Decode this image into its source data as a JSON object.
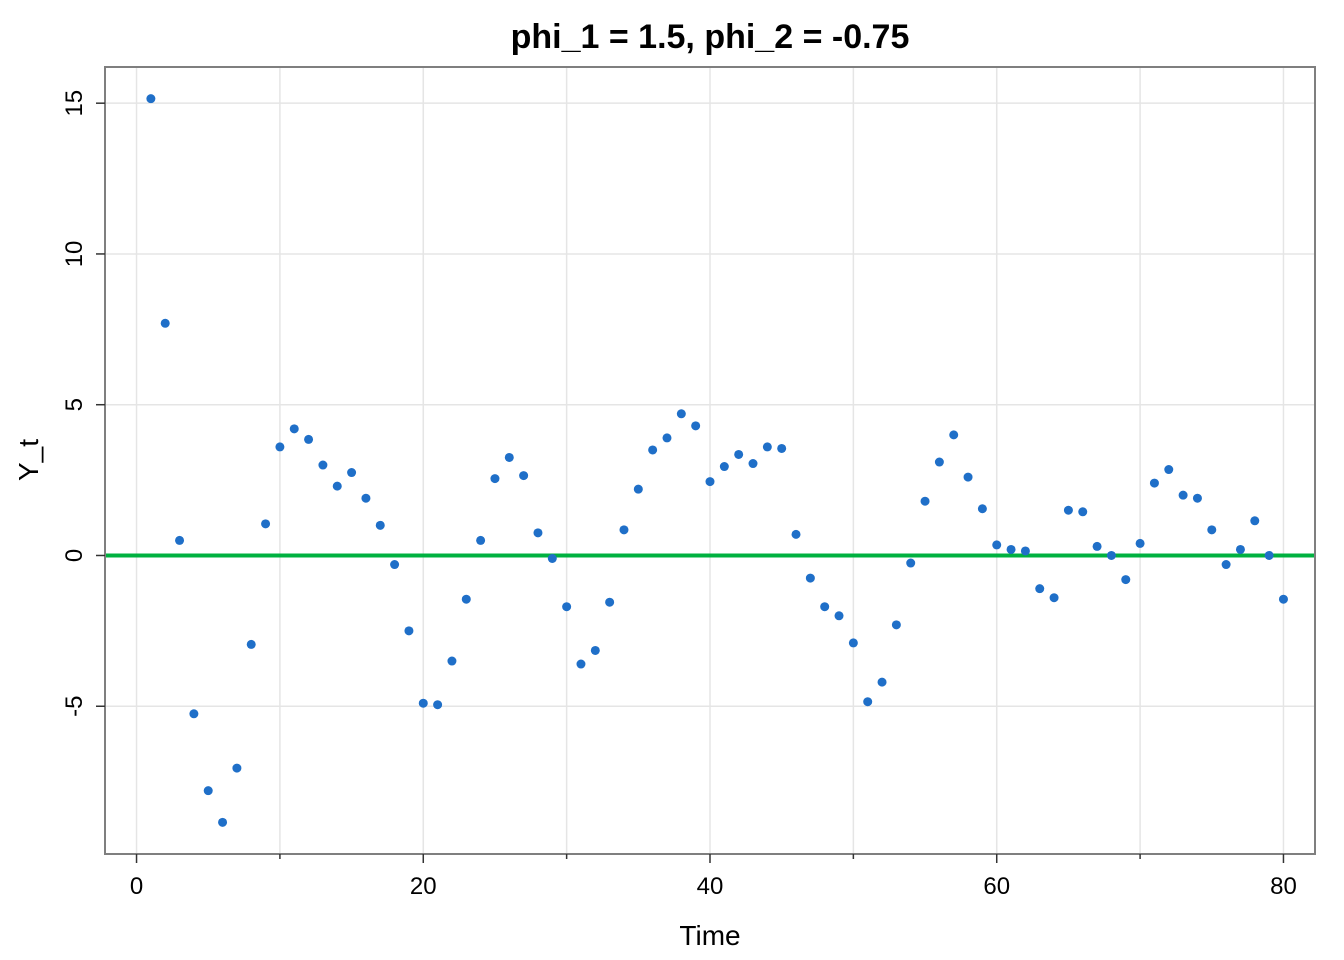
{
  "chart_data": {
    "type": "scatter",
    "title": "phi_1 = 1.5, phi_2 = -0.75",
    "xlabel": "Time",
    "ylabel": "Y_t",
    "xlim": [
      -2.2,
      82.2
    ],
    "ylim": [
      -9.9,
      16.2
    ],
    "x_ticks": [
      0,
      20,
      40,
      60,
      80
    ],
    "x_minor_ticks": [
      10,
      30,
      50,
      70
    ],
    "y_ticks": [
      -5,
      0,
      5,
      10,
      15
    ],
    "grid": true,
    "reference_line": {
      "y": 0,
      "color": "#00b140"
    },
    "point_color": "#1f6fc8",
    "series": [
      {
        "x": [
          1,
          2,
          3,
          4,
          5,
          6,
          7,
          8,
          9,
          10,
          11,
          12,
          13,
          14,
          15,
          16,
          17,
          18,
          19,
          20,
          21,
          22,
          23,
          24,
          25,
          26,
          27,
          28,
          29,
          30,
          31,
          32,
          33,
          34,
          35,
          36,
          37,
          38,
          39,
          40,
          41,
          42,
          43,
          44,
          45,
          46,
          47,
          48,
          49,
          50,
          51,
          52,
          53,
          54,
          55,
          56,
          57,
          58,
          59,
          60,
          61,
          62,
          63,
          64,
          65,
          66,
          67,
          68,
          69,
          70,
          71,
          72,
          73,
          74,
          75,
          76,
          77,
          78,
          79,
          80
        ],
        "y": [
          15.15,
          7.7,
          0.5,
          -5.25,
          -7.8,
          -8.85,
          -7.05,
          -2.95,
          1.05,
          3.6,
          4.2,
          3.85,
          3.0,
          2.3,
          2.75,
          1.9,
          1.0,
          -0.3,
          -2.5,
          -4.9,
          -4.95,
          -3.5,
          -1.45,
          0.5,
          2.55,
          3.25,
          2.65,
          0.75,
          -0.1,
          -1.7,
          -3.6,
          -3.15,
          -1.55,
          0.85,
          2.2,
          3.5,
          3.9,
          4.7,
          4.3,
          2.45,
          2.95,
          3.35,
          3.05,
          3.6,
          3.55,
          0.7,
          -0.75,
          -1.7,
          -2.0,
          -2.9,
          -4.85,
          -4.2,
          -2.3,
          -0.25,
          1.8,
          3.1,
          4.0,
          2.6,
          1.55,
          0.35,
          0.2,
          0.15,
          -1.1,
          -1.4,
          1.5,
          1.45,
          0.3,
          0.0,
          -0.8,
          0.4,
          2.4,
          2.85,
          2.0,
          1.9,
          0.85,
          -0.3,
          0.2,
          1.15,
          0.0,
          -1.45
        ]
      }
    ]
  }
}
